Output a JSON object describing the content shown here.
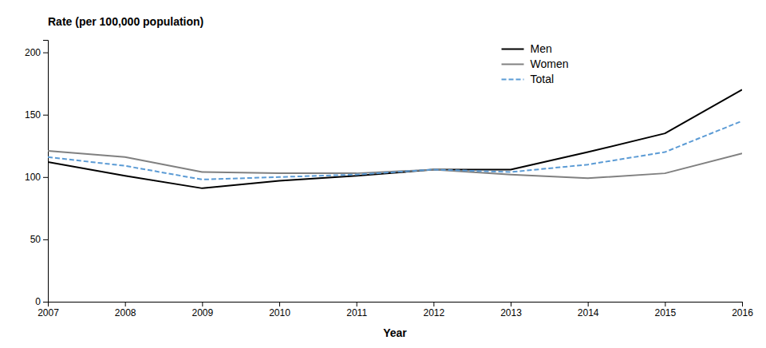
{
  "chart_data": {
    "type": "line",
    "xlabel": "Year",
    "ylabel": "Rate (per 100,000 population)",
    "x": [
      2007,
      2008,
      2009,
      2010,
      2011,
      2012,
      2013,
      2014,
      2015,
      2016
    ],
    "series": [
      {
        "name": "Men",
        "color": "#000000",
        "line_style": "solid",
        "values": [
          112,
          101,
          91,
          97,
          101,
          106,
          106,
          120,
          135,
          170
        ]
      },
      {
        "name": "Women",
        "color": "#808080",
        "line_style": "solid",
        "values": [
          121,
          116,
          104,
          103,
          103,
          106,
          102,
          99,
          103,
          119
        ]
      },
      {
        "name": "Total",
        "color": "#5b9bd5",
        "line_style": "dashed",
        "values": [
          116,
          109,
          98,
          100,
          102,
          106,
          104,
          110,
          120,
          145
        ]
      }
    ],
    "xlim": [
      2007,
      2016
    ],
    "xticks": [
      2007,
      2008,
      2009,
      2010,
      2011,
      2012,
      2013,
      2014,
      2015,
      2016
    ],
    "ylim": [
      0,
      210
    ],
    "yticks": [
      0,
      50,
      100,
      150,
      200
    ],
    "grid": false,
    "legend": "upper right"
  }
}
